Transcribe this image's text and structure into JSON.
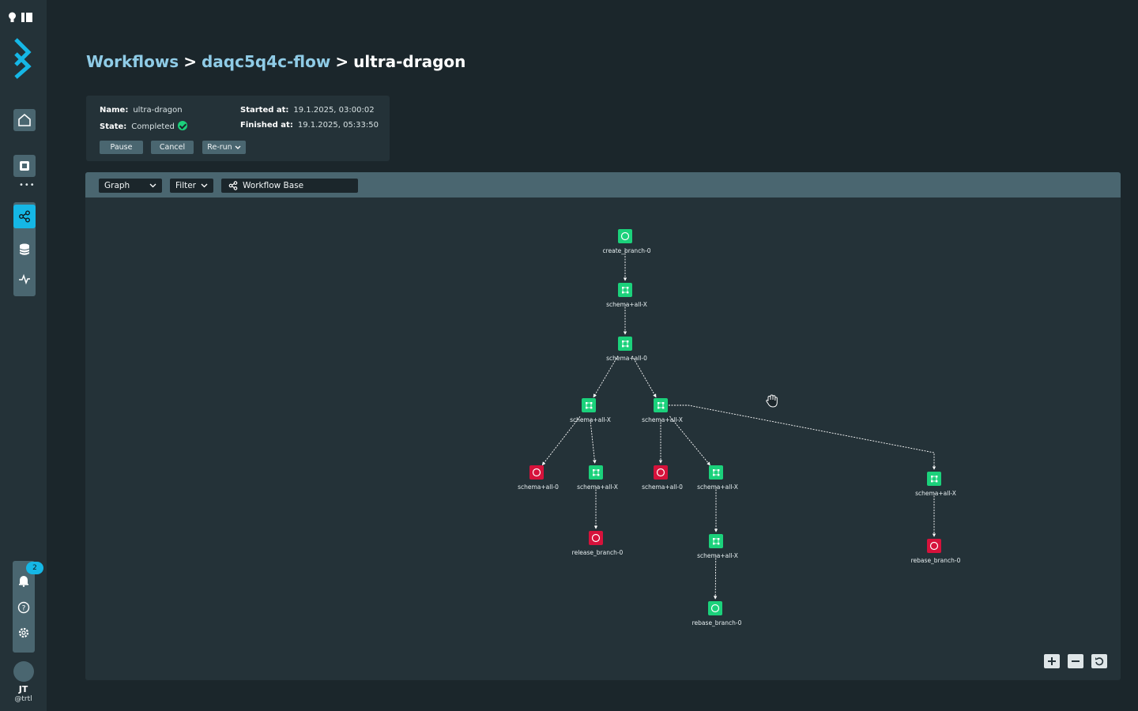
{
  "sidebar": {
    "notification_count": "2",
    "user": {
      "initials": "JT",
      "handle": "@trtl"
    }
  },
  "breadcrumb": {
    "items": [
      "Workflows",
      "daqc5q4c-flow",
      "ultra-dragon"
    ],
    "separator": ">"
  },
  "details": {
    "name_label": "Name:",
    "name_value": "ultra-dragon",
    "state_label": "State:",
    "state_value": "Completed",
    "started_label": "Started at:",
    "started_value": "19.1.2025, 03:00:02",
    "finished_label": "Finished at:",
    "finished_value": "19.1.2025, 05:33:50"
  },
  "actions": {
    "pause": "Pause",
    "cancel": "Cancel",
    "rerun": "Re-run"
  },
  "toolbar": {
    "view": "Graph",
    "filter": "Filter",
    "base": "Workflow Base"
  },
  "colors": {
    "success": "#1bd17b",
    "failed": "#d6123b",
    "accent": "#15b7e6",
    "link": "#8fcbe6"
  },
  "graph": {
    "nodes": [
      {
        "id": "n1",
        "label": "create_branch-0",
        "status": "success",
        "icon": "circle-icon"
      },
      {
        "id": "n2",
        "label": "schema+all-X",
        "status": "success",
        "icon": "workflow-icon"
      },
      {
        "id": "n3",
        "label": "schema+all-0",
        "status": "success",
        "icon": "workflow-icon"
      },
      {
        "id": "n4",
        "label": "schema+all-X",
        "status": "success",
        "icon": "workflow-icon"
      },
      {
        "id": "n5",
        "label": "schema+all-X",
        "status": "success",
        "icon": "workflow-icon"
      },
      {
        "id": "n6",
        "label": "schema+all-0",
        "status": "failed",
        "icon": "circle-icon"
      },
      {
        "id": "n7",
        "label": "schema+all-X",
        "status": "success",
        "icon": "workflow-icon"
      },
      {
        "id": "n8",
        "label": "schema+all-0",
        "status": "failed",
        "icon": "circle-icon"
      },
      {
        "id": "n9",
        "label": "schema+all-X",
        "status": "success",
        "icon": "workflow-icon"
      },
      {
        "id": "n10",
        "label": "schema+all-X",
        "status": "success",
        "icon": "workflow-icon"
      },
      {
        "id": "n11",
        "label": "release_branch-0",
        "status": "failed",
        "icon": "circle-icon"
      },
      {
        "id": "n12",
        "label": "schema+all-X",
        "status": "success",
        "icon": "workflow-icon"
      },
      {
        "id": "n13",
        "label": "rebase_branch-0",
        "status": "failed",
        "icon": "circle-icon"
      },
      {
        "id": "n14",
        "label": "rebase_branch-0",
        "status": "success",
        "icon": "circle-icon"
      }
    ],
    "edges": [
      [
        "n1",
        "n2"
      ],
      [
        "n2",
        "n3"
      ],
      [
        "n3",
        "n4"
      ],
      [
        "n3",
        "n5"
      ],
      [
        "n4",
        "n6"
      ],
      [
        "n4",
        "n7"
      ],
      [
        "n5",
        "n8"
      ],
      [
        "n5",
        "n9"
      ],
      [
        "n5",
        "n10"
      ],
      [
        "n7",
        "n11"
      ],
      [
        "n9",
        "n12"
      ],
      [
        "n10",
        "n13"
      ],
      [
        "n12",
        "n14"
      ]
    ]
  }
}
